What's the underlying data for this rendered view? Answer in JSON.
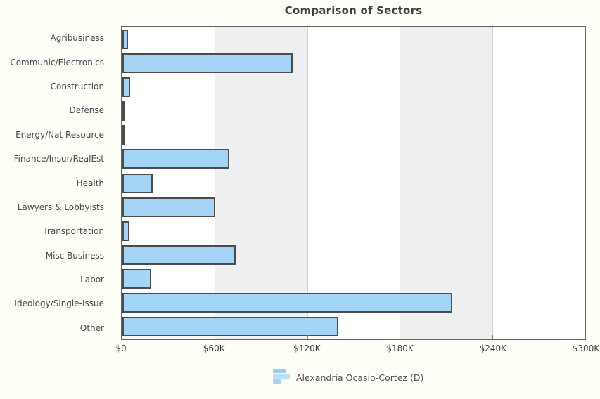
{
  "title": "Comparison of Sectors",
  "legend": {
    "label": "Alexandria Ocasio-Cortez (D)",
    "icon": "bar-chart-icon"
  },
  "colors": {
    "bar_fill": "#a3d5f7",
    "bar_border": "#4b4b4b",
    "band_gray": "#efefef",
    "plot_border": "#646464",
    "background": "#fffff8",
    "label_text": "#43484d"
  },
  "chart_data": {
    "type": "bar",
    "orientation": "horizontal",
    "title": "Comparison of Sectors",
    "categories": [
      "Agribusiness",
      "Communic/Electronics",
      "Construction",
      "Defense",
      "Energy/Nat Resource",
      "Finance/Insur/RealEst",
      "Health",
      "Lawyers & Lobbyists",
      "Transportation",
      "Misc Business",
      "Labor",
      "Ideology/Single-Issue",
      "Other"
    ],
    "series": [
      {
        "name": "Alexandria Ocasio-Cortez (D)",
        "values": [
          3600,
          110500,
          5000,
          1300,
          2000,
          69500,
          19500,
          60300,
          4600,
          73500,
          18500,
          214000,
          140000
        ]
      }
    ],
    "xlabel": "",
    "ylabel": "",
    "xlim": [
      0,
      300000
    ],
    "x_tick_labels": [
      "$0",
      "$60K",
      "$120K",
      "$180K",
      "$240K",
      "$300K"
    ],
    "x_tick_values": [
      0,
      60000,
      120000,
      180000,
      240000,
      300000
    ],
    "grid": "alternating vertical bands every $60K, light gridlines at tick positions",
    "legend_position": "bottom-center"
  }
}
